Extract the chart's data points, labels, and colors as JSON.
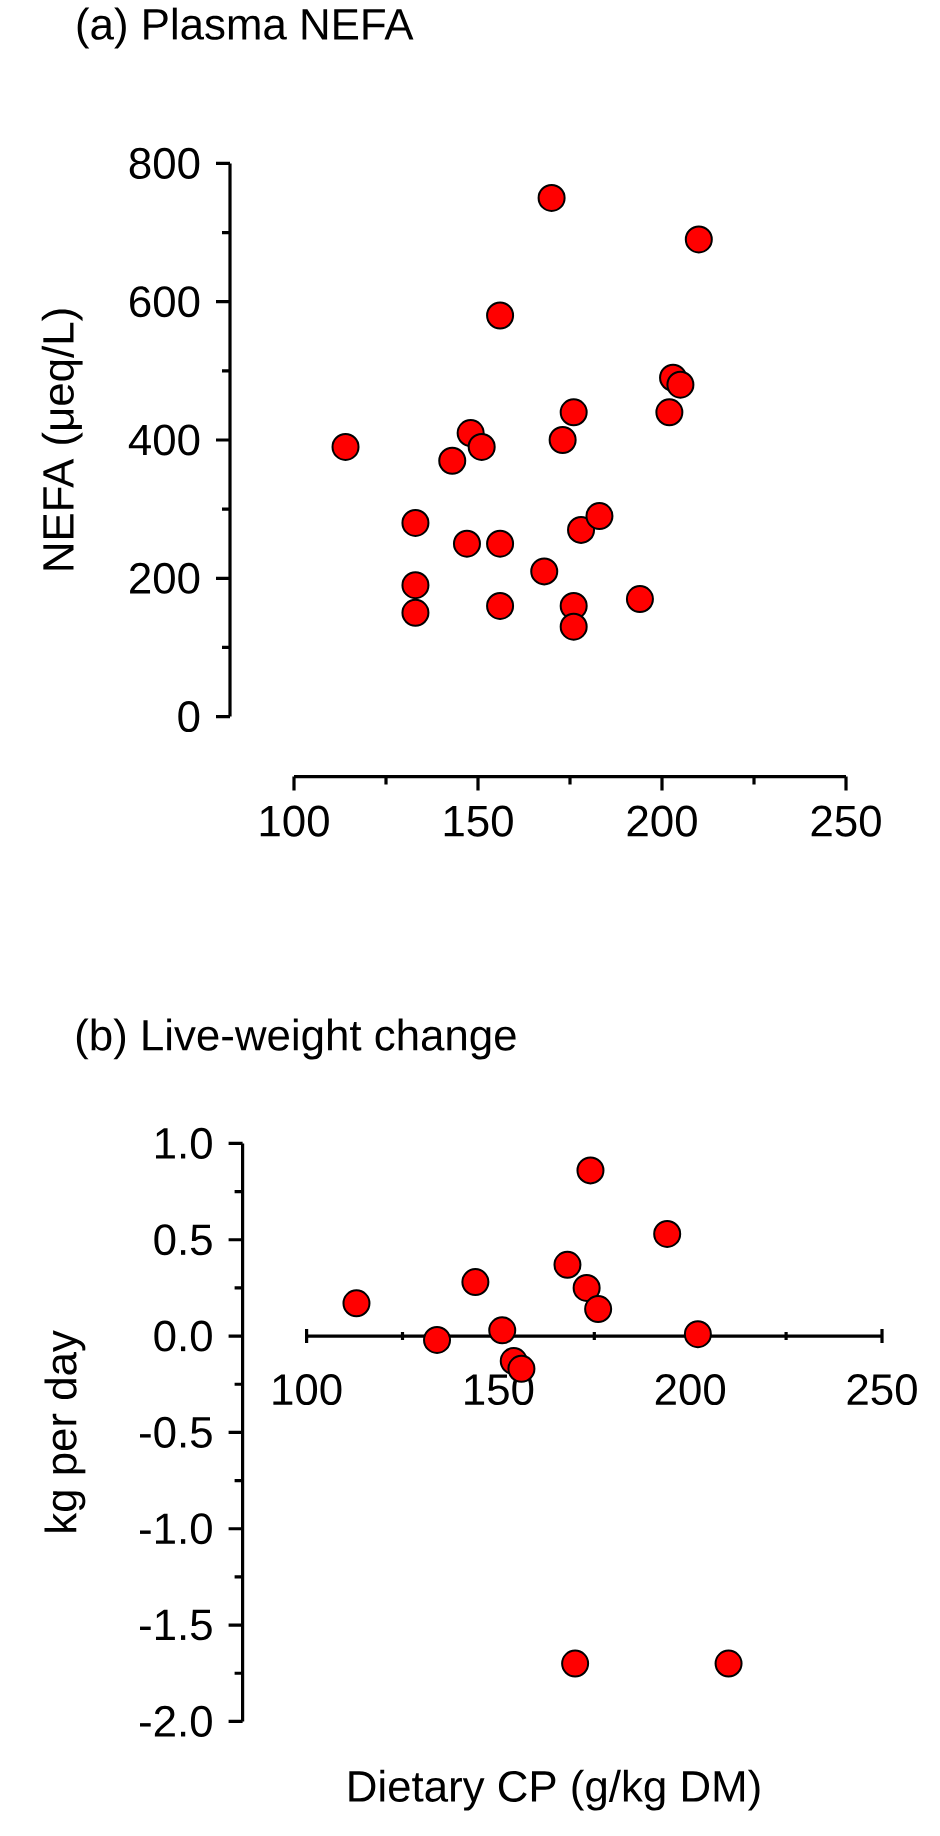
{
  "chart_data": [
    {
      "type": "scatter",
      "title": "(a) Plasma NEFA",
      "ylabel": "NEFA (μeq/L)",
      "color": "#ff0000",
      "marker": "circle",
      "x": [
        114,
        133,
        133,
        133,
        143,
        147,
        148,
        151,
        156,
        156,
        156,
        168,
        170,
        173,
        176,
        176,
        176,
        178,
        183,
        194,
        202,
        203,
        205,
        210
      ],
      "values": [
        390,
        280,
        190,
        150,
        370,
        250,
        410,
        390,
        580,
        250,
        160,
        210,
        750,
        400,
        440,
        160,
        130,
        270,
        290,
        170,
        440,
        490,
        480,
        690
      ],
      "xlim": [
        100,
        250
      ],
      "ylim": [
        0,
        800
      ],
      "xticks": [
        100,
        150,
        200,
        250
      ],
      "yticks": [
        0,
        200,
        400,
        600,
        800
      ]
    },
    {
      "type": "scatter",
      "title": "(b) Live-weight change",
      "xlabel": "Dietary CP (g/kg DM)",
      "ylabel": "kg per day",
      "color": "#ff0000",
      "marker": "circle",
      "x": [
        113,
        134,
        144,
        151,
        154,
        156,
        168,
        170,
        173,
        174,
        176,
        194,
        202,
        210
      ],
      "values": [
        0.17,
        -0.02,
        0.28,
        0.03,
        -0.13,
        -0.17,
        0.37,
        -1.7,
        0.25,
        0.86,
        0.14,
        0.53,
        0.01,
        -1.7
      ],
      "xlim": [
        100,
        250
      ],
      "ylim": [
        -2,
        1
      ],
      "xticks": [
        100,
        150,
        200,
        250
      ],
      "yticks": [
        {
          "value": 1,
          "label": "1.0"
        },
        {
          "value": 0.5,
          "label": "0.5"
        },
        {
          "value": 0,
          "label": "0.0"
        },
        {
          "value": -0.5,
          "label": "-0.5"
        },
        {
          "value": -1,
          "label": "-1.0"
        },
        {
          "value": -1.5,
          "label": "-1.5"
        },
        {
          "value": -2,
          "label": "-2.0"
        }
      ]
    }
  ]
}
